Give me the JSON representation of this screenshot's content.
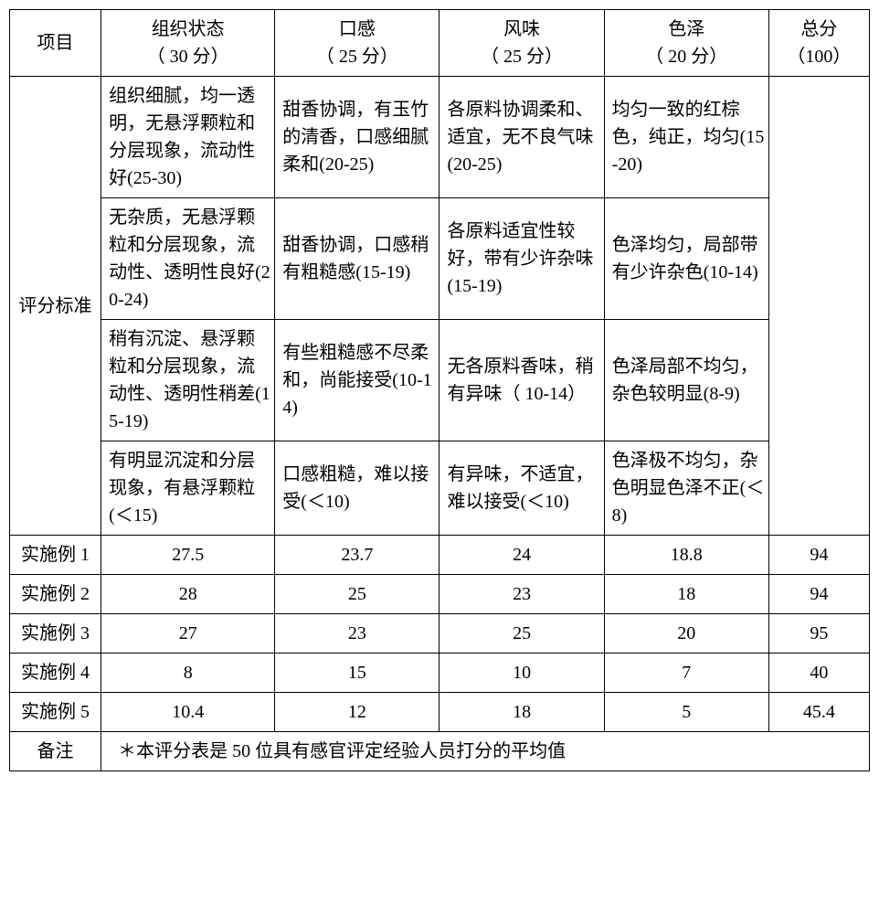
{
  "header": {
    "project": "项目",
    "cols": [
      {
        "title": "组织状态",
        "score": "（ 30 分）"
      },
      {
        "title": "口感",
        "score": "（ 25 分）"
      },
      {
        "title": "风味",
        "score": "（ 25 分）"
      },
      {
        "title": "色泽",
        "score": "（ 20 分）"
      }
    ],
    "total_title": "总分",
    "total_score": "（100）"
  },
  "criteria_label": "评分标准",
  "criteria": [
    {
      "c1": "组织细腻，均一透明，无悬浮颗粒和分层现象，流动性好(25-30)",
      "c2": "甜香协调，有玉竹的清香，口感细腻柔和(20-25)",
      "c3": "各原料协调柔和、适宜，无不良气味(20-25)",
      "c4": "均匀一致的红棕色，纯正，均匀(15-20)"
    },
    {
      "c1": "无杂质，无悬浮颗粒和分层现象，流动性、透明性良好(20-24)",
      "c2": "甜香协调，口感稍有粗糙感(15-19)",
      "c3": "各原料适宜性较好，带有少许杂味(15-19)",
      "c4": "色泽均匀，局部带有少许杂色(10-14)"
    },
    {
      "c1": "稍有沉淀、悬浮颗粒和分层现象，流动性、透明性稍差(15-19)",
      "c2": "有些粗糙感不尽柔和，尚能接受(10-14)",
      "c3": "无各原料香味，稍有异味（ 10-14）",
      "c4": "色泽局部不均匀，杂色较明显(8-9)"
    },
    {
      "c1": "有明显沉淀和分层现象，有悬浮颗粒(＜15)",
      "c2": "口感粗糙，难以接受(＜10)",
      "c3": "有异味，不适宜，难以接受(＜10)",
      "c4": "色泽极不均匀，杂色明显色泽不正(＜8)"
    }
  ],
  "examples": [
    {
      "name": "实施例 1",
      "v": [
        "27.5",
        "23.7",
        "24",
        "18.8",
        "94"
      ]
    },
    {
      "name": "实施例 2",
      "v": [
        "28",
        "25",
        "23",
        "18",
        "94"
      ]
    },
    {
      "name": "实施例 3",
      "v": [
        "27",
        "23",
        "25",
        "20",
        "95"
      ]
    },
    {
      "name": "实施例 4",
      "v": [
        "8",
        "15",
        "10",
        "7",
        "40"
      ]
    },
    {
      "name": "实施例 5",
      "v": [
        "10.4",
        "12",
        "18",
        "5",
        "45.4"
      ]
    }
  ],
  "note_label": "备注",
  "note_text": "＊本评分表是 50 位具有感官评定经验人员打分的平均值"
}
